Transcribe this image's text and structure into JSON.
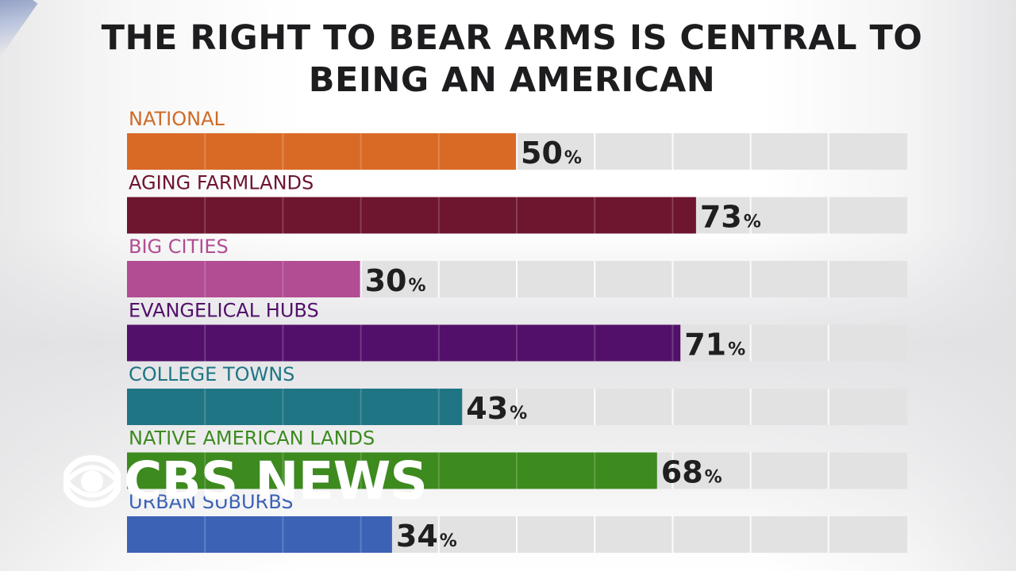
{
  "title": "THE RIGHT TO BEAR ARMS IS CENTRAL TO BEING AN AMERICAN",
  "watermark": {
    "text": "CBS NEWS",
    "icon": "cbs-eye-icon"
  },
  "chart_data": {
    "type": "bar",
    "orientation": "horizontal",
    "title": "THE RIGHT TO BEAR ARMS IS CENTRAL TO BEING AN AMERICAN",
    "xlabel": "",
    "ylabel": "",
    "xlim": [
      0,
      100
    ],
    "grid": true,
    "value_suffix": "%",
    "categories": [
      "NATIONAL",
      "AGING FARMLANDS",
      "BIG CITIES",
      "EVANGELICAL HUBS",
      "COLLEGE TOWNS",
      "NATIVE AMERICAN LANDS",
      "URBAN SUBURBS"
    ],
    "values": [
      50,
      73,
      30,
      71,
      43,
      68,
      34
    ],
    "colors": [
      "#d96a26",
      "#6e1530",
      "#b24c93",
      "#52106a",
      "#1f7583",
      "#3d8a1f",
      "#3b62b5"
    ],
    "label_colors": [
      "#cf6a25",
      "#6e1530",
      "#b24c93",
      "#52106a",
      "#1f7583",
      "#3d8a1f",
      "#3b62b5"
    ],
    "track_color": "#e2e2e2"
  }
}
